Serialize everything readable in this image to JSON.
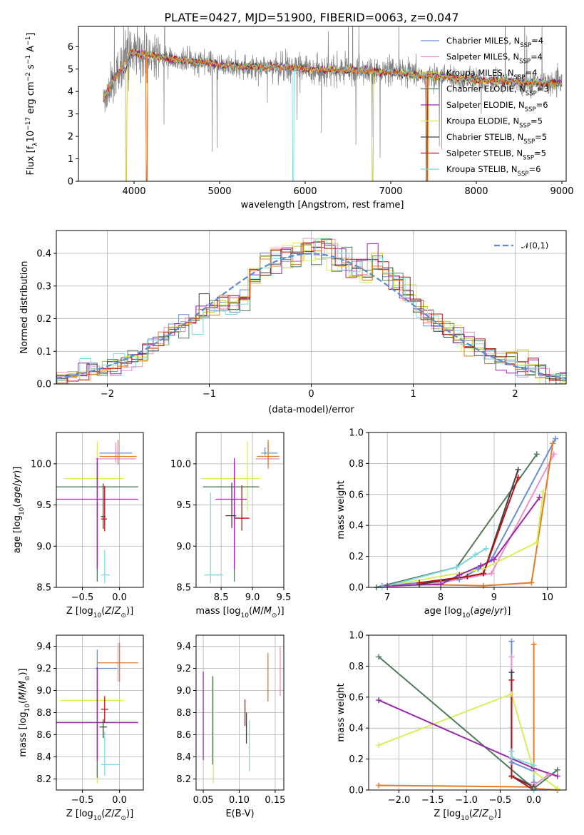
{
  "chart_data": [
    {
      "id": "spectrum",
      "type": "line",
      "title": "PLATE=0427, MJD=51900, FIBERID=0063, z=0.047",
      "xlabel": "wavelength [Angstrom, rest frame]",
      "ylabel": "Flux [fλ10⁻¹⁷ erg cm⁻² s⁻¹ A⁻¹]",
      "xlim": [
        3350,
        9050
      ],
      "ylim": [
        0,
        6.9
      ],
      "xticks": [
        "4000",
        "5000",
        "6000",
        "7000",
        "8000",
        "9000"
      ],
      "yticks": [
        "0",
        "1",
        "2",
        "3",
        "4",
        "5",
        "6"
      ],
      "grid": false,
      "legend_position": "top-right",
      "data_series": {
        "name": "",
        "color": "#808080",
        "x_range": [
          3640,
          9000
        ],
        "approx_level": 5.0
      },
      "model_series": [
        {
          "name": "Chabrier MILES, N_SSP=4",
          "label_main": "Chabrier MILES, N",
          "sub": "SSP",
          "tail": "=4",
          "color": "#6a8fd5",
          "dropouts": []
        },
        {
          "name": "Salpeter MILES, N_SSP=4",
          "label_main": "Salpeter MILES, N",
          "sub": "SSP",
          "tail": "=4",
          "color": "#ee8fc8",
          "dropouts": []
        },
        {
          "name": "Kroupa MILES, N_SSP=4",
          "label_main": "Kroupa MILES, N",
          "sub": "SSP",
          "tail": "=4",
          "color": "#c8c820",
          "dropouts": [
            3910,
            6790
          ]
        },
        {
          "name": "Chabrier ELODIE, N_SSP=3",
          "label_main": "Chabrier ELODIE, N",
          "sub": "SSP",
          "tail": "=3",
          "color": "#4e7c5a",
          "dropouts": []
        },
        {
          "name": "Salpeter ELODIE, N_SSP=6",
          "label_main": "Salpeter ELODIE, N",
          "sub": "SSP",
          "tail": "=6",
          "color": "#9b27ad",
          "dropouts": []
        },
        {
          "name": "Kroupa ELODIE, N_SSP=5",
          "label_main": "Kroupa ELODIE, N",
          "sub": "SSP",
          "tail": "=5",
          "color": "#d8ee5a",
          "dropouts": []
        },
        {
          "name": "Chabrier STELIB, N_SSP=5",
          "label_main": "Chabrier STELIB, N",
          "sub": "SSP",
          "tail": "=5",
          "color": "#404040",
          "dropouts": []
        },
        {
          "name": "Salpeter STELIB, N_SSP=5",
          "label_main": "Salpeter STELIB, N",
          "sub": "SSP",
          "tail": "=5",
          "color": "#b81414",
          "dropouts": [
            4150,
            7420
          ]
        },
        {
          "name": "Kroupa STELIB, N_SSP=6",
          "label_main": "Kroupa STELIB, N",
          "sub": "SSP",
          "tail": "=6",
          "color": "#7fd8e0",
          "dropouts": [
            5860
          ]
        }
      ],
      "extra_colors": {
        "orange": "#e07b28"
      }
    },
    {
      "id": "residuals",
      "type": "line",
      "xlabel": "(data-model)/error",
      "ylabel": "Normed distribution",
      "xlim": [
        -2.5,
        2.5
      ],
      "ylim": [
        0,
        0.47
      ],
      "xticks": [
        -2,
        -1,
        0,
        1,
        2
      ],
      "yticks": [
        0.0,
        0.1,
        0.2,
        0.3,
        0.4
      ],
      "grid": true,
      "legend": "𝒩(0,1)",
      "legend_position": "top-right",
      "gaussian_color": "#5b8bd0",
      "histogram_colors": [
        "#6a8fd5",
        "#ee8fc8",
        "#c8c820",
        "#4e7c5a",
        "#9b27ad",
        "#d8ee5a",
        "#404040",
        "#b81414",
        "#7fd8e0",
        "#e07b28"
      ]
    },
    {
      "id": "age_vs_Z",
      "type": "scatter",
      "xlabel": "Z [log₁₀(Z/Z⊙)]",
      "ylabel": "age  [log₁₀(age/yr)]",
      "xlim": [
        -0.85,
        0.32
      ],
      "ylim": [
        8.5,
        10.38
      ],
      "xticks": [
        -0.5,
        0.0
      ],
      "yticks": [
        8.5,
        9.0,
        9.5,
        10.0
      ],
      "grid": true,
      "points": [
        {
          "x": -0.05,
          "y": 10.13,
          "xerr": [
            0.22,
            0.22
          ],
          "yerr": [
            0.03,
            0.07
          ],
          "color": "#6a8fd5"
        },
        {
          "x": -0.05,
          "y": 10.06,
          "xerr": [
            0.27,
            0.27
          ],
          "yerr": [
            0.05,
            0.2
          ],
          "color": "#ee8fc8"
        },
        {
          "x": -0.02,
          "y": 10.09,
          "xerr": [
            0.25,
            0.25
          ],
          "yerr": [
            0.1,
            0.2
          ],
          "color": "#e07b28"
        },
        {
          "x": -0.3,
          "y": 9.82,
          "xerr": [
            0.45,
            0.35
          ],
          "yerr": [
            0.4,
            0.45
          ],
          "color": "#d8ee5a"
        },
        {
          "x": -0.3,
          "y": 9.72,
          "xerr": [
            0.55,
            0.55
          ],
          "yerr": [
            1.15,
            0.3
          ],
          "color": "#4e7c5a"
        },
        {
          "x": -0.3,
          "y": 9.57,
          "xerr": [
            0.55,
            0.55
          ],
          "yerr": [
            0.85,
            0.5
          ],
          "color": "#9b27ad"
        },
        {
          "x": -0.22,
          "y": 9.36,
          "xerr": [
            0.03,
            0.03
          ],
          "yerr": [
            0.15,
            0.4
          ],
          "color": "#404040"
        },
        {
          "x": -0.2,
          "y": 9.33,
          "xerr": [
            0.05,
            0.03
          ],
          "yerr": [
            0.15,
            0.4
          ],
          "color": "#b81414"
        },
        {
          "x": -0.2,
          "y": 8.65,
          "xerr": [
            0.05,
            0.07
          ],
          "yerr": [
            0.1,
            0.3
          ],
          "color": "#7fd8e0"
        }
      ]
    },
    {
      "id": "age_vs_mass",
      "type": "scatter",
      "xlabel": "mass [log₁₀(M/M⊙)]",
      "ylabel": "",
      "xlim": [
        8.1,
        9.5
      ],
      "ylim": [
        8.5,
        10.38
      ],
      "xticks": [
        8.5,
        9.0,
        9.5
      ],
      "yticks": [
        8.5,
        9.0,
        9.5,
        10.0
      ],
      "grid": true,
      "points": [
        {
          "x": 9.2,
          "y": 10.13,
          "xerr": [
            0.06,
            0.2
          ],
          "yerr": [
            0.03,
            0.07
          ],
          "color": "#6a8fd5"
        },
        {
          "x": 9.25,
          "y": 10.06,
          "xerr": [
            0.2,
            0.18
          ],
          "yerr": [
            0.05,
            0.2
          ],
          "color": "#ee8fc8"
        },
        {
          "x": 9.25,
          "y": 10.09,
          "xerr": [
            0.18,
            0.18
          ],
          "yerr": [
            0.15,
            0.2
          ],
          "color": "#e07b28"
        },
        {
          "x": 8.92,
          "y": 9.82,
          "xerr": [
            0.75,
            0.2
          ],
          "yerr": [
            0.4,
            0.45
          ],
          "color": "#d8ee5a"
        },
        {
          "x": 8.71,
          "y": 9.72,
          "xerr": [
            0.5,
            0.4
          ],
          "yerr": [
            1.15,
            0.3
          ],
          "color": "#4e7c5a"
        },
        {
          "x": 8.71,
          "y": 9.57,
          "xerr": [
            0.3,
            0.2
          ],
          "yerr": [
            0.85,
            0.5
          ],
          "color": "#9b27ad"
        },
        {
          "x": 8.67,
          "y": 9.37,
          "xerr": [
            0.1,
            0.07
          ],
          "yerr": [
            0.15,
            0.4
          ],
          "color": "#404040"
        },
        {
          "x": 8.83,
          "y": 9.34,
          "xerr": [
            0.12,
            0.12
          ],
          "yerr": [
            0.15,
            0.4
          ],
          "color": "#b81414"
        },
        {
          "x": 8.33,
          "y": 8.65,
          "xerr": [
            0.1,
            0.2
          ],
          "yerr": [
            0.1,
            1.0
          ],
          "color": "#7fd8e0"
        }
      ]
    },
    {
      "id": "weight_vs_age",
      "type": "line",
      "xlabel": "age  [log₁₀(age/yr)]",
      "ylabel": "mass weight",
      "xlim": [
        6.65,
        10.35
      ],
      "ylim": [
        0,
        1.0
      ],
      "xticks": [
        7,
        8,
        9,
        10
      ],
      "yticks": [
        0.0,
        0.2,
        0.4,
        0.6,
        0.8,
        1.0
      ],
      "grid": true,
      "series": [
        {
          "color": "#6a8fd5",
          "x": [
            6.9,
            8.35,
            8.7,
            8.95,
            10.15
          ],
          "y": [
            0.01,
            0.05,
            0.12,
            0.18,
            0.96
          ]
        },
        {
          "color": "#ee8fc8",
          "x": [
            6.9,
            8.0,
            8.95,
            10.12
          ],
          "y": [
            0.0,
            0.03,
            0.09,
            0.86
          ]
        },
        {
          "color": "#e07b28",
          "x": [
            7.6,
            8.8,
            9.7,
            10.1
          ],
          "y": [
            0.02,
            0.01,
            0.03,
            0.93
          ]
        },
        {
          "color": "#d8ee5a",
          "x": [
            7.0,
            8.8,
            9.8,
            9.92
          ],
          "y": [
            0.01,
            0.12,
            0.29,
            0.62
          ]
        },
        {
          "color": "#4e7c5a",
          "x": [
            6.8,
            8.3,
            9.8
          ],
          "y": [
            0.0,
            0.13,
            0.86
          ]
        },
        {
          "color": "#9b27ad",
          "x": [
            7.0,
            8.0,
            8.35,
            8.75,
            9.0,
            9.85
          ],
          "y": [
            0.01,
            0.02,
            0.08,
            0.14,
            0.18,
            0.58
          ]
        },
        {
          "color": "#404040",
          "x": [
            7.6,
            8.5,
            8.8,
            9.45
          ],
          "y": [
            0.02,
            0.07,
            0.09,
            0.76
          ]
        },
        {
          "color": "#b81414",
          "x": [
            7.6,
            8.5,
            8.8,
            9.45
          ],
          "y": [
            0.03,
            0.07,
            0.09,
            0.71
          ]
        },
        {
          "color": "#7fd8e0",
          "x": [
            6.9,
            8.3,
            8.65,
            8.85
          ],
          "y": [
            0.0,
            0.13,
            0.21,
            0.25
          ]
        }
      ]
    },
    {
      "id": "mass_vs_Z",
      "type": "scatter",
      "xlabel": "Z [log₁₀(Z/Z⊙)]",
      "ylabel": "mass [log₁₀(M/M⊙)]",
      "xlim": [
        -0.85,
        0.32
      ],
      "ylim": [
        8.1,
        9.5
      ],
      "xticks": [
        -0.5,
        0.0
      ],
      "yticks": [
        8.2,
        8.4,
        8.6,
        8.8,
        9.0,
        9.2,
        9.4
      ],
      "grid": true,
      "points": [
        {
          "x": -0.3,
          "y": 9.2,
          "xerr": [
            0.02,
            0.27
          ],
          "yerr": [
            0.06,
            0.17
          ],
          "color": "#6a8fd5"
        },
        {
          "x": -0.02,
          "y": 9.25,
          "xerr": [
            0.02,
            0.02
          ],
          "yerr": [
            0.17,
            0.18
          ],
          "color": "#ee8fc8"
        },
        {
          "x": 0.0,
          "y": 9.25,
          "xerr": [
            0.3,
            0.25
          ],
          "yerr": [
            0.17,
            0.18
          ],
          "color": "#e07b28"
        },
        {
          "x": -0.3,
          "y": 8.91,
          "xerr": [
            0.5,
            0.35
          ],
          "yerr": [
            0.75,
            0.2
          ],
          "color": "#d8ee5a"
        },
        {
          "x": -0.3,
          "y": 8.71,
          "xerr": [
            0.55,
            0.55
          ],
          "yerr": [
            0.5,
            0.42
          ],
          "color": "#4e7c5a"
        },
        {
          "x": -0.3,
          "y": 8.71,
          "xerr": [
            0.55,
            0.55
          ],
          "yerr": [
            0.35,
            0.5
          ],
          "color": "#9b27ad"
        },
        {
          "x": -0.22,
          "y": 8.67,
          "xerr": [
            0.05,
            0.05
          ],
          "yerr": [
            0.1,
            0.07
          ],
          "color": "#404040"
        },
        {
          "x": -0.2,
          "y": 8.83,
          "xerr": [
            0.05,
            0.05
          ],
          "yerr": [
            0.12,
            0.12
          ],
          "color": "#b81414"
        },
        {
          "x": -0.2,
          "y": 8.33,
          "xerr": [
            0.05,
            0.2
          ],
          "yerr": [
            0.1,
            0.3
          ],
          "color": "#7fd8e0"
        }
      ]
    },
    {
      "id": "mass_vs_ebv",
      "type": "scatter",
      "xlabel": "E(B-V)",
      "ylabel": "",
      "xlim": [
        0.04,
        0.162
      ],
      "ylim": [
        8.1,
        9.5
      ],
      "xticks": [
        0.05,
        0.1,
        0.15
      ],
      "yticks": [
        8.2,
        8.4,
        8.6,
        8.8,
        9.0,
        9.2,
        9.4
      ],
      "grid": true,
      "points": [
        {
          "x": 0.157,
          "y": 9.2,
          "yerr": [
            0.25,
            0.2
          ],
          "color": "#ee8fc8"
        },
        {
          "x": 0.14,
          "y": 9.12,
          "yerr": [
            0.22,
            0.22
          ],
          "color": "#e07b28"
        },
        {
          "x": 0.05,
          "y": 8.77,
          "yerr": [
            0.4,
            0.4
          ],
          "color": "#9b27ad"
        },
        {
          "x": 0.064,
          "y": 8.64,
          "yerr": [
            0.48,
            0.48
          ],
          "color": "#d8ee5a"
        },
        {
          "x": 0.063,
          "y": 8.73,
          "yerr": [
            0.4,
            0.4
          ],
          "color": "#4e7c5a"
        },
        {
          "x": 0.108,
          "y": 8.8,
          "yerr": [
            0.12,
            0.12
          ],
          "color": "#b81414"
        },
        {
          "x": 0.11,
          "y": 8.66,
          "yerr": [
            0.14,
            0.14
          ],
          "color": "#404040"
        },
        {
          "x": 0.114,
          "y": 8.5,
          "yerr": [
            0.23,
            0.23
          ],
          "color": "#7fd8e0"
        }
      ]
    },
    {
      "id": "weight_vs_Z",
      "type": "line",
      "xlabel": "Z [log₁₀(Z/Z⊙)]",
      "ylabel": "mass weight",
      "xlim": [
        -2.45,
        0.48
      ],
      "ylim": [
        0,
        1.0
      ],
      "xticks": [
        -2.0,
        -1.5,
        -1.0,
        -0.5,
        0.0
      ],
      "yticks": [
        0.0,
        0.2,
        0.4,
        0.6,
        0.8,
        1.0
      ],
      "grid": true,
      "series": [
        {
          "color": "#6a8fd5",
          "x": [
            -0.33,
            -0.33,
            0.0,
            0.0
          ],
          "y": [
            0.96,
            0.18,
            0.12,
            0.05
          ]
        },
        {
          "color": "#ee8fc8",
          "x": [
            -0.33,
            -0.33,
            0.0,
            0.22
          ],
          "y": [
            0.86,
            0.09,
            0.03,
            0.1
          ]
        },
        {
          "color": "#e07b28",
          "x": [
            -2.3,
            0.0,
            0.0,
            0.0,
            0.35
          ],
          "y": [
            0.03,
            0.02,
            0.94,
            0.01,
            0.0
          ]
        },
        {
          "color": "#d8ee5a",
          "x": [
            -2.3,
            -0.33,
            0.0,
            0.35
          ],
          "y": [
            0.29,
            0.62,
            0.12,
            0.01
          ]
        },
        {
          "color": "#4e7c5a",
          "x": [
            -2.3,
            0.0,
            0.35
          ],
          "y": [
            0.86,
            0.01,
            0.13
          ]
        },
        {
          "color": "#9b27ad",
          "x": [
            -2.3,
            0.0,
            0.35
          ],
          "y": [
            0.58,
            0.14,
            0.09
          ]
        },
        {
          "color": "#404040",
          "x": [
            -0.33,
            -0.33,
            0.0
          ],
          "y": [
            0.76,
            0.09,
            0.02
          ]
        },
        {
          "color": "#b81414",
          "x": [
            -0.33,
            -0.33,
            0.0
          ],
          "y": [
            0.71,
            0.09,
            0.0
          ]
        },
        {
          "color": "#7fd8e0",
          "x": [
            -0.33,
            -0.33,
            0.0,
            0.0
          ],
          "y": [
            0.25,
            0.21,
            0.16,
            0.0
          ]
        }
      ]
    }
  ]
}
